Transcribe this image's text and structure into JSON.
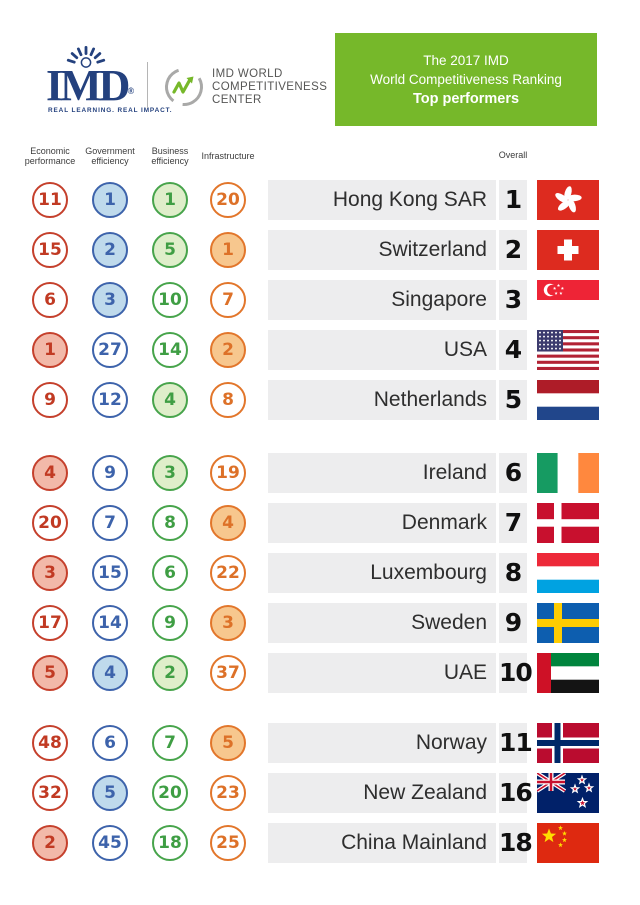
{
  "header": {
    "imd_logo": {
      "wordmark": "IMD",
      "reg": "®",
      "tagline": "REAL LEARNING. REAL IMPACT."
    },
    "center_logo": {
      "line1": "IMD WORLD",
      "line2": "COMPETITIVENESS",
      "line3": "CENTER"
    },
    "banner": {
      "line1": "The 2017 IMD",
      "line2": "World Competitiveness Ranking",
      "line3": "Top performers"
    }
  },
  "table": {
    "overall_label": "Overall",
    "columns": [
      {
        "key": "economic-performance",
        "label": "Economic performance",
        "color_name": "red"
      },
      {
        "key": "government-efficiency",
        "label": "Government efficiency",
        "color_name": "blue"
      },
      {
        "key": "business-efficiency",
        "label": "Business efficiency",
        "color_name": "green"
      },
      {
        "key": "infrastructure",
        "label": "Infrastructure",
        "color_name": "orange"
      }
    ],
    "sections": [
      {
        "rows": [
          {
            "country": "Hong Kong SAR",
            "overall": "1",
            "flag": "hong-kong",
            "scores": [
              {
                "value": "11",
                "filled": false
              },
              {
                "value": "1",
                "filled": true
              },
              {
                "value": "1",
                "filled": true
              },
              {
                "value": "20",
                "filled": false
              }
            ]
          },
          {
            "country": "Switzerland",
            "overall": "2",
            "flag": "switzerland",
            "scores": [
              {
                "value": "15",
                "filled": false
              },
              {
                "value": "2",
                "filled": true
              },
              {
                "value": "5",
                "filled": true
              },
              {
                "value": "1",
                "filled": true
              }
            ]
          },
          {
            "country": "Singapore",
            "overall": "3",
            "flag": "singapore",
            "scores": [
              {
                "value": "6",
                "filled": false
              },
              {
                "value": "3",
                "filled": true
              },
              {
                "value": "10",
                "filled": false
              },
              {
                "value": "7",
                "filled": false
              }
            ]
          },
          {
            "country": "USA",
            "overall": "4",
            "flag": "usa",
            "scores": [
              {
                "value": "1",
                "filled": true
              },
              {
                "value": "27",
                "filled": false
              },
              {
                "value": "14",
                "filled": false
              },
              {
                "value": "2",
                "filled": true
              }
            ]
          },
          {
            "country": "Netherlands",
            "overall": "5",
            "flag": "netherlands",
            "scores": [
              {
                "value": "9",
                "filled": false
              },
              {
                "value": "12",
                "filled": false
              },
              {
                "value": "4",
                "filled": true
              },
              {
                "value": "8",
                "filled": false
              }
            ]
          }
        ]
      },
      {
        "rows": [
          {
            "country": "Ireland",
            "overall": "6",
            "flag": "ireland",
            "scores": [
              {
                "value": "4",
                "filled": true
              },
              {
                "value": "9",
                "filled": false
              },
              {
                "value": "3",
                "filled": true
              },
              {
                "value": "19",
                "filled": false
              }
            ]
          },
          {
            "country": "Denmark",
            "overall": "7",
            "flag": "denmark",
            "scores": [
              {
                "value": "20",
                "filled": false
              },
              {
                "value": "7",
                "filled": false
              },
              {
                "value": "8",
                "filled": false
              },
              {
                "value": "4",
                "filled": true
              }
            ]
          },
          {
            "country": "Luxembourg",
            "overall": "8",
            "flag": "luxembourg",
            "scores": [
              {
                "value": "3",
                "filled": true
              },
              {
                "value": "15",
                "filled": false
              },
              {
                "value": "6",
                "filled": false
              },
              {
                "value": "22",
                "filled": false
              }
            ]
          },
          {
            "country": "Sweden",
            "overall": "9",
            "flag": "sweden",
            "scores": [
              {
                "value": "17",
                "filled": false
              },
              {
                "value": "14",
                "filled": false
              },
              {
                "value": "9",
                "filled": false
              },
              {
                "value": "3",
                "filled": true
              }
            ]
          },
          {
            "country": "UAE",
            "overall": "10",
            "flag": "uae",
            "scores": [
              {
                "value": "5",
                "filled": true
              },
              {
                "value": "4",
                "filled": true
              },
              {
                "value": "2",
                "filled": true
              },
              {
                "value": "37",
                "filled": false
              }
            ]
          }
        ]
      },
      {
        "rows": [
          {
            "country": "Norway",
            "overall": "11",
            "flag": "norway",
            "scores": [
              {
                "value": "48",
                "filled": false
              },
              {
                "value": "6",
                "filled": false
              },
              {
                "value": "7",
                "filled": false
              },
              {
                "value": "5",
                "filled": true
              }
            ]
          },
          {
            "country": "New Zealand",
            "overall": "16",
            "flag": "new-zealand",
            "scores": [
              {
                "value": "32",
                "filled": false
              },
              {
                "value": "5",
                "filled": true
              },
              {
                "value": "20",
                "filled": false
              },
              {
                "value": "23",
                "filled": false
              }
            ]
          },
          {
            "country": "China Mainland",
            "overall": "18",
            "flag": "china",
            "scores": [
              {
                "value": "2",
                "filled": true
              },
              {
                "value": "45",
                "filled": false
              },
              {
                "value": "18",
                "filled": false
              },
              {
                "value": "25",
                "filled": false
              }
            ]
          }
        ]
      }
    ]
  },
  "colors": {
    "banner_green": "#76b82a",
    "imd_navy": "#24417e",
    "bar_gray": "#ededee",
    "score_red_line": "#c5402c",
    "score_red_fill": "#f2b9a9",
    "score_blue_line": "#3d63ab",
    "score_blue_fill": "#bfdaec",
    "score_green_line": "#47a44b",
    "score_green_fill": "#dfeeca",
    "score_orange_line": "#e2762b",
    "score_orange_fill": "#f7c78e"
  }
}
